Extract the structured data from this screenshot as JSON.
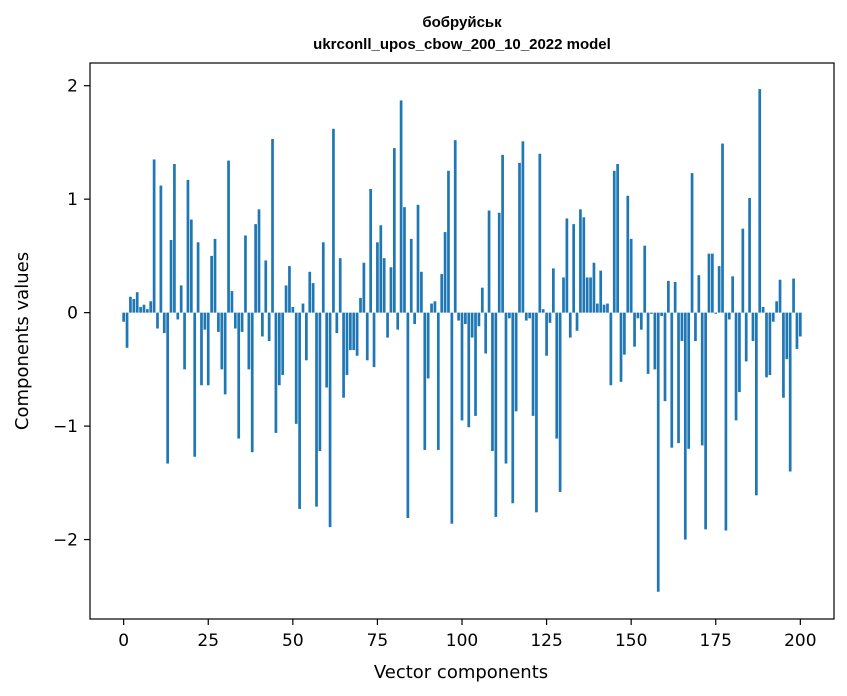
{
  "chart_data": {
    "type": "bar",
    "title": "бобруйськ",
    "subtitle": "ukrconll_upos_cbow_200_10_2022 model",
    "xlabel": "Vector components",
    "ylabel": "Components values",
    "xlim": [
      -9.95,
      209.95
    ],
    "ylim": [
      -2.7,
      2.2
    ],
    "xticks": [
      0,
      25,
      50,
      75,
      100,
      125,
      150,
      175,
      200
    ],
    "xtick_labels": [
      "0",
      "25",
      "50",
      "75",
      "100",
      "125",
      "150",
      "175",
      "200"
    ],
    "yticks": [
      -2,
      -1,
      0,
      1,
      2
    ],
    "ytick_labels": [
      "−2",
      "−1",
      "0",
      "1",
      "2"
    ],
    "grid": false,
    "bar_color": "#1f77b4",
    "values": [
      -0.08,
      -0.31,
      0.14,
      0.12,
      0.18,
      0.05,
      0.07,
      0.03,
      0.1,
      1.35,
      -0.14,
      1.12,
      -0.18,
      -1.33,
      0.64,
      1.31,
      -0.06,
      0.24,
      -0.5,
      1.17,
      0.82,
      -1.27,
      0.62,
      -0.64,
      -0.15,
      -0.64,
      0.5,
      0.65,
      -0.17,
      -0.5,
      -0.72,
      1.34,
      0.19,
      -0.14,
      -1.11,
      -0.17,
      0.68,
      -0.5,
      -1.23,
      0.78,
      0.91,
      -0.21,
      0.46,
      -0.25,
      1.53,
      -1.06,
      -0.64,
      -0.55,
      0.24,
      0.41,
      0.05,
      -0.98,
      -1.73,
      0.08,
      -0.42,
      0.36,
      0.26,
      -1.71,
      -1.22,
      0.62,
      -0.66,
      -1.89,
      1.62,
      -0.18,
      0.48,
      -0.75,
      -0.55,
      -0.33,
      -0.33,
      -0.38,
      0.13,
      0.44,
      -0.42,
      1.09,
      -0.48,
      0.62,
      0.77,
      0.48,
      -0.22,
      0.4,
      1.45,
      -0.15,
      1.87,
      0.93,
      -1.81,
      0.65,
      -0.1,
      0.95,
      0.36,
      -1.21,
      -0.58,
      0.08,
      0.1,
      -1.21,
      0.34,
      0.71,
      1.25,
      -1.86,
      1.52,
      -0.07,
      -0.95,
      -0.1,
      -1.01,
      -0.22,
      -0.91,
      -0.12,
      0.22,
      -0.36,
      0.9,
      -1.22,
      -1.8,
      0.88,
      1.39,
      -1.33,
      -0.05,
      -1.68,
      -0.87,
      1.32,
      1.51,
      -0.07,
      -0.05,
      -0.91,
      -1.76,
      1.4,
      0.03,
      -0.38,
      -0.09,
      0.39,
      -1.11,
      -1.58,
      0.31,
      0.83,
      -0.22,
      0.78,
      -0.16,
      0.91,
      0.84,
      0.31,
      0.31,
      0.44,
      0.08,
      0.37,
      0.07,
      0.08,
      -0.64,
      1.25,
      1.31,
      -0.61,
      -0.37,
      1.03,
      0.65,
      -0.3,
      -0.05,
      -0.15,
      0.59,
      -0.54,
      -0.01,
      -0.5,
      -2.46,
      -0.03,
      -0.78,
      0.28,
      -1.19,
      0.27,
      -1.15,
      -0.25,
      -2.0,
      -1.2,
      1.23,
      -0.25,
      0.33,
      -1.17,
      -1.91,
      0.52,
      0.52,
      -0.01,
      0.41,
      1.49,
      -1.92,
      -0.06,
      0.32,
      -0.95,
      -0.7,
      0.74,
      -0.43,
      1.01,
      -0.25,
      -1.61,
      1.97,
      0.05,
      -0.57,
      -0.55,
      -0.08,
      0.1,
      0.29,
      -0.75,
      -0.41,
      -1.4,
      0.3,
      -0.32,
      -0.21
    ]
  }
}
